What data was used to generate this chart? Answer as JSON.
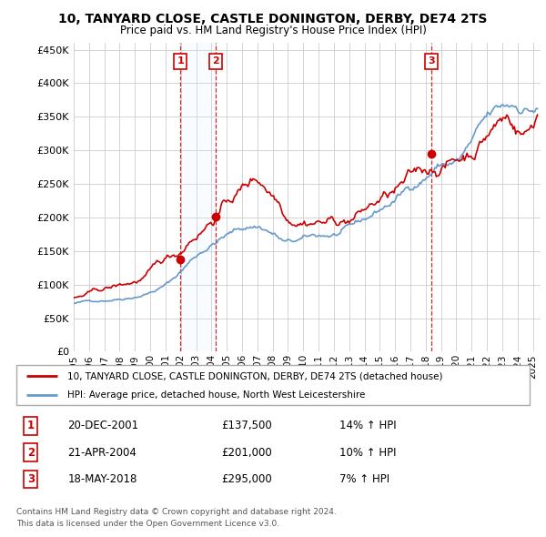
{
  "title": "10, TANYARD CLOSE, CASTLE DONINGTON, DERBY, DE74 2TS",
  "subtitle": "Price paid vs. HM Land Registry's House Price Index (HPI)",
  "legend_line1": "10, TANYARD CLOSE, CASTLE DONINGTON, DERBY, DE74 2TS (detached house)",
  "legend_line2": "HPI: Average price, detached house, North West Leicestershire",
  "footer1": "Contains HM Land Registry data © Crown copyright and database right 2024.",
  "footer2": "This data is licensed under the Open Government Licence v3.0.",
  "transactions": [
    {
      "num": 1,
      "date": "20-DEC-2001",
      "price": "£137,500",
      "hpi": "14% ↑ HPI",
      "year": 2001.97
    },
    {
      "num": 2,
      "date": "21-APR-2004",
      "price": "£201,000",
      "hpi": "10% ↑ HPI",
      "year": 2004.3
    },
    {
      "num": 3,
      "date": "18-MAY-2018",
      "price": "£295,000",
      "hpi": "7% ↑ HPI",
      "year": 2018.38
    }
  ],
  "price_color": "#cc0000",
  "hpi_color": "#6699cc",
  "dot_color": "#cc0000",
  "shade_color": "#ddeeff",
  "background_color": "#ffffff",
  "grid_color": "#cccccc",
  "ylim": [
    0,
    460000
  ],
  "xlim_start": 1995.0,
  "xlim_end": 2025.5,
  "yticks": [
    0,
    50000,
    100000,
    150000,
    200000,
    250000,
    300000,
    350000,
    400000,
    450000
  ],
  "ytick_labels": [
    "£0",
    "£50K",
    "£100K",
    "£150K",
    "£200K",
    "£250K",
    "£300K",
    "£350K",
    "£400K",
    "£450K"
  ],
  "xticks": [
    1995,
    1996,
    1997,
    1998,
    1999,
    2000,
    2001,
    2002,
    2003,
    2004,
    2005,
    2006,
    2007,
    2008,
    2009,
    2010,
    2011,
    2012,
    2013,
    2014,
    2015,
    2016,
    2017,
    2018,
    2019,
    2020,
    2021,
    2022,
    2023,
    2024,
    2025
  ],
  "transaction_dot_values": [
    137500,
    201000,
    295000
  ]
}
